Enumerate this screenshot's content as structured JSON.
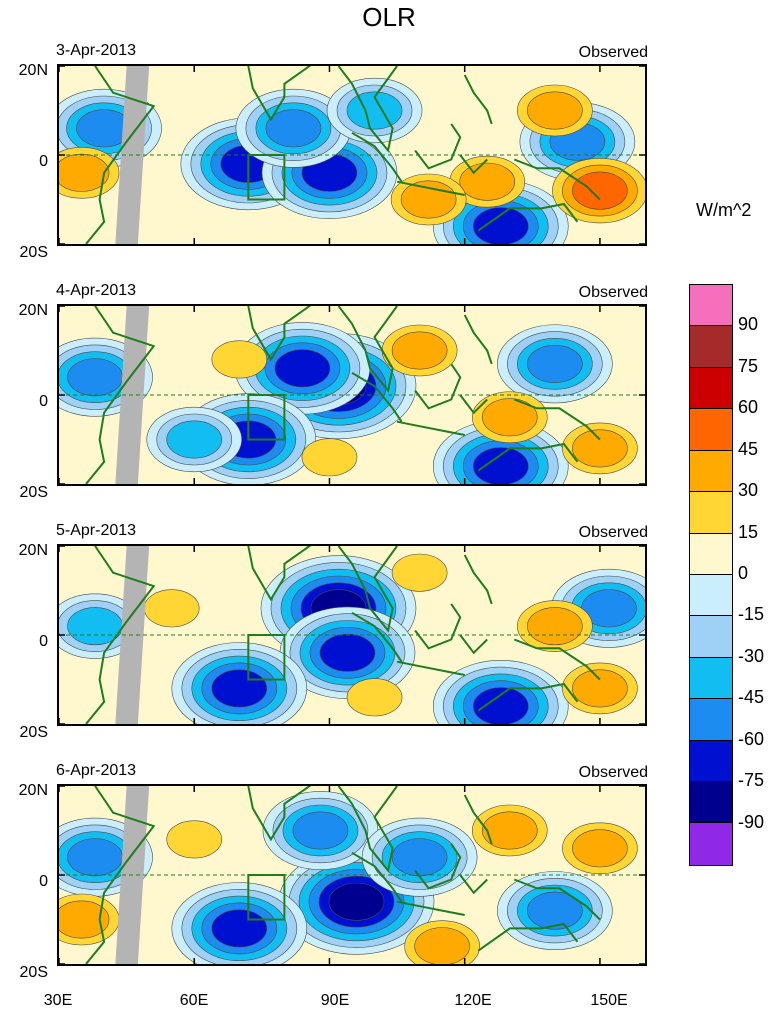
{
  "chart_data": {
    "type": "heatmap",
    "title": "OLR",
    "units": "W/m^2",
    "x_ticks": [
      "30E",
      "60E",
      "90E",
      "120E",
      "150E"
    ],
    "y_ticks": [
      "20N",
      "0",
      "20S"
    ],
    "xlim": [
      30,
      160
    ],
    "ylim": [
      -20,
      20
    ],
    "colorbar_ticks": [
      "90",
      "75",
      "60",
      "45",
      "30",
      "15",
      "0",
      "-15",
      "-30",
      "-45",
      "-60",
      "-75",
      "-90"
    ],
    "colorbar_colors": [
      "#f56fbd",
      "#a52a2a",
      "#cc0000",
      "#ff6600",
      "#ffaa00",
      "#ffd633",
      "#fff8cf",
      "#cbeefc",
      "#9fd0f5",
      "#12bdf2",
      "#1c8cf0",
      "#0010d0",
      "#00008e",
      "#9028e8"
    ],
    "panels": [
      {
        "date": "3-Apr-2013",
        "label": "Observed",
        "anomalies": [
          {
            "lon": 72,
            "lat": -2,
            "value": -80
          },
          {
            "lon": 90,
            "lat": -4,
            "value": -75
          },
          {
            "lon": 82,
            "lat": 6,
            "value": -60
          },
          {
            "lon": 100,
            "lat": 10,
            "value": -45
          },
          {
            "lon": 128,
            "lat": -16,
            "value": -75
          },
          {
            "lon": 145,
            "lat": 3,
            "value": -60
          },
          {
            "lon": 40,
            "lat": 6,
            "value": -60
          },
          {
            "lon": 125,
            "lat": -6,
            "value": 30
          },
          {
            "lon": 150,
            "lat": -8,
            "value": 45
          },
          {
            "lon": 140,
            "lat": 10,
            "value": 30
          },
          {
            "lon": 35,
            "lat": -4,
            "value": 30
          },
          {
            "lon": 112,
            "lat": -10,
            "value": 25
          }
        ]
      },
      {
        "date": "4-Apr-2013",
        "label": "Observed",
        "anomalies": [
          {
            "lon": 92,
            "lat": 2,
            "value": -90
          },
          {
            "lon": 84,
            "lat": 6,
            "value": -75
          },
          {
            "lon": 72,
            "lat": -10,
            "value": -70
          },
          {
            "lon": 128,
            "lat": -16,
            "value": -75
          },
          {
            "lon": 140,
            "lat": 7,
            "value": -60
          },
          {
            "lon": 38,
            "lat": 4,
            "value": -60
          },
          {
            "lon": 60,
            "lat": -10,
            "value": -45
          },
          {
            "lon": 130,
            "lat": -5,
            "value": 30
          },
          {
            "lon": 150,
            "lat": -12,
            "value": 30
          },
          {
            "lon": 110,
            "lat": 10,
            "value": 25
          },
          {
            "lon": 90,
            "lat": -14,
            "value": 20
          },
          {
            "lon": 70,
            "lat": 8,
            "value": 15
          }
        ]
      },
      {
        "date": "5-Apr-2013",
        "label": "Observed",
        "anomalies": [
          {
            "lon": 92,
            "lat": 6,
            "value": -90
          },
          {
            "lon": 94,
            "lat": -4,
            "value": -80
          },
          {
            "lon": 70,
            "lat": -12,
            "value": -75
          },
          {
            "lon": 128,
            "lat": -16,
            "value": -75
          },
          {
            "lon": 152,
            "lat": 6,
            "value": -60
          },
          {
            "lon": 38,
            "lat": 2,
            "value": -45
          },
          {
            "lon": 110,
            "lat": 14,
            "value": 20
          },
          {
            "lon": 140,
            "lat": 2,
            "value": 35
          },
          {
            "lon": 150,
            "lat": -12,
            "value": 30
          },
          {
            "lon": 100,
            "lat": -14,
            "value": 20
          },
          {
            "lon": 55,
            "lat": 6,
            "value": 15
          }
        ]
      },
      {
        "date": "6-Apr-2013",
        "label": "Observed",
        "anomalies": [
          {
            "lon": 96,
            "lat": -6,
            "value": -90
          },
          {
            "lon": 88,
            "lat": 10,
            "value": -60
          },
          {
            "lon": 70,
            "lat": -12,
            "value": -80
          },
          {
            "lon": 110,
            "lat": 4,
            "value": -60
          },
          {
            "lon": 140,
            "lat": -8,
            "value": -60
          },
          {
            "lon": 38,
            "lat": 4,
            "value": -60
          },
          {
            "lon": 130,
            "lat": 10,
            "value": 30
          },
          {
            "lon": 150,
            "lat": 6,
            "value": 35
          },
          {
            "lon": 115,
            "lat": -16,
            "value": 25
          },
          {
            "lon": 60,
            "lat": 8,
            "value": 20
          },
          {
            "lon": 35,
            "lat": -10,
            "value": 25
          }
        ]
      }
    ]
  }
}
